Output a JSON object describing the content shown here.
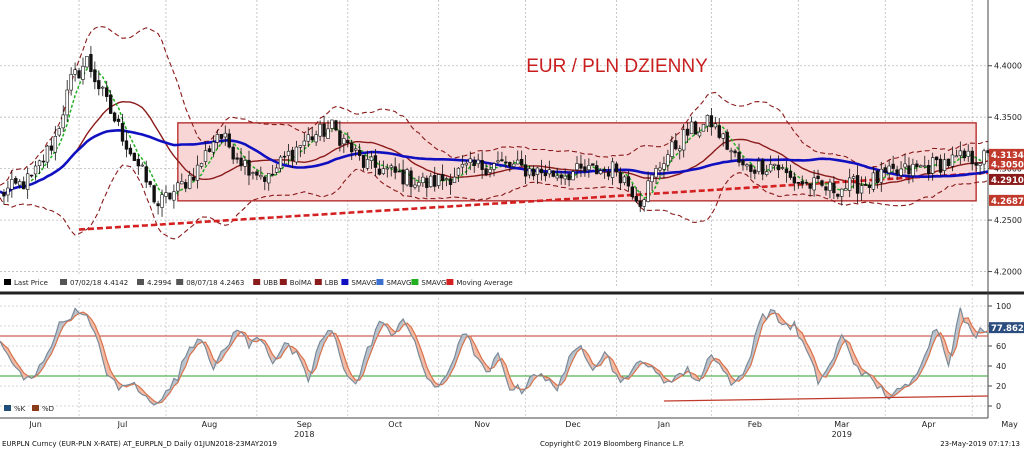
{
  "chart_data": [
    {
      "type": "line",
      "subtype": "candlestick",
      "title": "EUR / PLN DZIENNY",
      "ylim": [
        4.185,
        4.46
      ],
      "y_ticks": [
        "4.2000",
        "4.2500",
        "4.3000",
        "4.3500",
        "4.4000"
      ],
      "y_tick_values": [
        4.2,
        4.25,
        4.3,
        4.35,
        4.4
      ],
      "price_labels": [
        {
          "text": "4.3134",
          "value": 4.3134,
          "color": "#c0392b"
        },
        {
          "text": "4.3050",
          "value": 4.305,
          "color": "#c0392b"
        },
        {
          "text": "4.2910",
          "value": 4.291,
          "color": "#8b1a1a"
        },
        {
          "text": "4.2687",
          "value": 4.2687,
          "color": "#c0392b"
        }
      ],
      "range_box": {
        "x_start": 45.0,
        "x_end": 247.0,
        "y_low": 4.2687,
        "y_high": 4.3445,
        "fill": "#f9d6d6",
        "stroke": "#b22222"
      },
      "ohlc_anchors": {
        "x": [
          0,
          8,
          14,
          18,
          22,
          28,
          34,
          40,
          45,
          50,
          55,
          62,
          68,
          72,
          78,
          84,
          92,
          100,
          108,
          112,
          118,
          126,
          132,
          140,
          148,
          156,
          162,
          168,
          174,
          180,
          188,
          196,
          200,
          204,
          210,
          218,
          226,
          232,
          238,
          244,
          250
        ],
        "close": [
          4.275,
          4.29,
          4.33,
          4.385,
          4.405,
          4.355,
          4.31,
          4.265,
          4.28,
          4.3,
          4.335,
          4.305,
          4.29,
          4.31,
          4.33,
          4.34,
          4.305,
          4.295,
          4.285,
          4.29,
          4.3,
          4.305,
          4.3,
          4.295,
          4.297,
          4.3,
          4.27,
          4.31,
          4.335,
          4.345,
          4.3,
          4.305,
          4.29,
          4.285,
          4.28,
          4.285,
          4.295,
          4.3,
          4.305,
          4.31,
          4.31
        ]
      },
      "series": [
        {
          "name": "Last Price",
          "style": "candlestick",
          "color": "#000000"
        },
        {
          "name": "UBB",
          "style": "dashed",
          "color": "#8b1a1a"
        },
        {
          "name": "BolMA",
          "style": "solid",
          "color": "#8b1a1a"
        },
        {
          "name": "LBB",
          "style": "dashed",
          "color": "#8b1a1a"
        },
        {
          "name": "SMAVG",
          "style": "solid",
          "color": "#1010c0"
        },
        {
          "name": "SMAVG",
          "style": "solid",
          "color": "#3b6fd1"
        },
        {
          "name": "SMAVG",
          "style": "dashed",
          "color": "#22b022"
        },
        {
          "name": "Moving Average",
          "style": "dashed",
          "color": "#d42020"
        }
      ],
      "legend": [
        {
          "text": "Last Price",
          "color": "#000000"
        },
        {
          "text": "07/02/18 4.4142",
          "color": "#555555"
        },
        {
          "text": "4.2994",
          "color": "#555555"
        },
        {
          "text": "08/07/18 4.2463",
          "color": "#555555"
        },
        {
          "text": "UBB",
          "color": "#8b1a1a"
        },
        {
          "text": "BolMA",
          "color": "#8b1a1a"
        },
        {
          "text": "LBB",
          "color": "#8b1a1a"
        },
        {
          "text": "SMAVG",
          "color": "#1010c0"
        },
        {
          "text": "SMAVG",
          "color": "#3b6fd1"
        },
        {
          "text": "SMAVG",
          "color": "#22b022"
        },
        {
          "text": "Moving Average",
          "color": "#d42020"
        }
      ],
      "legend_placement": "bottom-left",
      "grid": true
    },
    {
      "type": "line",
      "subtype": "stochastic",
      "ylim": [
        -10,
        108
      ],
      "y_ticks": [
        "0",
        "20",
        "40",
        "60",
        "80",
        "100"
      ],
      "y_tick_values": [
        0,
        20,
        40,
        60,
        80,
        100
      ],
      "levels": [
        {
          "value": 70,
          "color": "#c0392b"
        },
        {
          "value": 30,
          "color": "#2e9e2e"
        }
      ],
      "value_label": {
        "text": "77.8622",
        "value": 77.8622
      },
      "trendline": {
        "x": [
          168,
          250
        ],
        "y": [
          5,
          10
        ],
        "color": "#c0392b"
      },
      "k_anchors": {
        "x": [
          0,
          3,
          6,
          9,
          12,
          15,
          18,
          21,
          24,
          27,
          30,
          33,
          36,
          39,
          42,
          45,
          48,
          51,
          54,
          57,
          60,
          63,
          66,
          69,
          72,
          75,
          78,
          81,
          84,
          87,
          90,
          93,
          96,
          99,
          102,
          105,
          108,
          111,
          114,
          117,
          120,
          123,
          126,
          129,
          132,
          135,
          138,
          141,
          144,
          147,
          150,
          153,
          156,
          159,
          162,
          165,
          168,
          171,
          174,
          177,
          180,
          183,
          186,
          189,
          192,
          195,
          198,
          201,
          204,
          207,
          210,
          213,
          216,
          219,
          222,
          225,
          228,
          231,
          234,
          237,
          240,
          243,
          246,
          249,
          250
        ],
        "values": [
          62,
          45,
          25,
          30,
          55,
          80,
          92,
          96,
          70,
          35,
          15,
          25,
          10,
          5,
          12,
          30,
          60,
          70,
          40,
          55,
          80,
          60,
          70,
          45,
          62,
          50,
          25,
          65,
          75,
          40,
          20,
          55,
          85,
          70,
          90,
          60,
          30,
          15,
          40,
          75,
          55,
          30,
          50,
          20,
          15,
          35,
          25,
          20,
          45,
          60,
          40,
          55,
          30,
          25,
          50,
          35,
          25,
          30,
          35,
          25,
          55,
          35,
          20,
          40,
          85,
          95,
          82,
          80,
          55,
          25,
          40,
          70,
          45,
          30,
          20,
          10,
          15,
          25,
          55,
          80,
          45,
          95,
          70,
          78,
          77.86
        ]
      },
      "series": [
        {
          "name": "%K",
          "style": "line",
          "color": "#7a8a99"
        },
        {
          "name": "%D",
          "style": "line",
          "color": "#d9724a"
        }
      ],
      "legend": [
        {
          "text": "%K",
          "color": "#1f4e79"
        },
        {
          "text": "%D",
          "color": "#8b3a1a"
        }
      ],
      "legend_placement": "bottom-left",
      "grid": true
    }
  ],
  "x_axis": {
    "range": [
      0,
      250
    ],
    "months": [
      {
        "label": "Jun",
        "x": 9
      },
      {
        "label": "Jul",
        "x": 31
      },
      {
        "label": "Aug",
        "x": 53
      },
      {
        "label": "Sep",
        "x": 77
      },
      {
        "label": "Oct",
        "x": 100
      },
      {
        "label": "Nov",
        "x": 122
      },
      {
        "label": "Dec",
        "x": 145
      },
      {
        "label": "Jan",
        "x": 168
      },
      {
        "label": "Feb",
        "x": 191
      },
      {
        "label": "Mar",
        "x": 213
      },
      {
        "label": "Apr",
        "x": 235
      },
      {
        "label": "May",
        "x": 257
      }
    ],
    "years": [
      {
        "label": "2018",
        "x": 77
      },
      {
        "label": "2019",
        "x": 213
      }
    ],
    "gridlines_x": [
      20,
      42,
      65,
      88,
      111,
      133,
      156,
      180,
      202,
      224,
      246
    ]
  },
  "footer": {
    "left": "EURPLN Curncy (EUR-PLN X-RATE) AT_EURPLN_D  Daily 01JUN2018-23MAY2019",
    "center": "Copyright© 2019 Bloomberg Finance L.P.",
    "right": "23-May-2019 07:17:13"
  }
}
